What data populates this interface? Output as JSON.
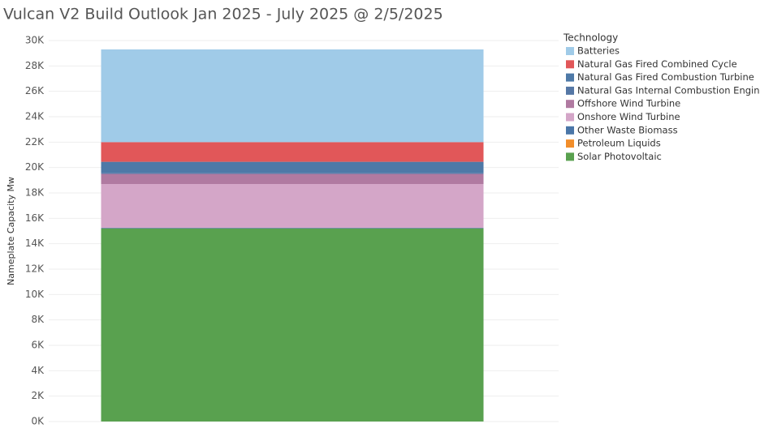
{
  "chart_data": {
    "type": "stacked_bar",
    "title": "Vulcan V2 Build Outlook Jan 2025 - July 2025 @ 2/5/2025",
    "y_label": "Nameplate Capacity Mw",
    "legend_title": "Technology",
    "categories": [
      null
    ],
    "series": [
      {
        "name": "Batteries",
        "color": "#a0cbe8",
        "values": [
          7300
        ]
      },
      {
        "name": "Natural Gas Fired Combined Cycle",
        "color": "#e15759",
        "values": [
          1550
        ]
      },
      {
        "name": "Natural Gas Fired Combustion Turbine",
        "color": "#4e79a7",
        "values": [
          900
        ]
      },
      {
        "name": "Natural Gas Internal Combustion Engine",
        "color": "#5577a5",
        "values": [
          50
        ]
      },
      {
        "name": "Offshore Wind Turbine",
        "color": "#b07aa1",
        "values": [
          800
        ]
      },
      {
        "name": "Onshore Wind Turbine",
        "color": "#d4a6c8",
        "values": [
          3440
        ]
      },
      {
        "name": "Other Waste Biomass",
        "color": "#4a76a8",
        "values": [
          50
        ]
      },
      {
        "name": "Petroleum Liquids",
        "color": "#f28e2b",
        "values": [
          10
        ]
      },
      {
        "name": "Solar Photovoltaic",
        "color": "#59a14f",
        "values": [
          15200
        ]
      }
    ],
    "ylim": [
      0,
      30000
    ],
    "yticks": [
      {
        "value": 0,
        "label": "0K"
      },
      {
        "value": 2000,
        "label": "2K"
      },
      {
        "value": 4000,
        "label": "4K"
      },
      {
        "value": 6000,
        "label": "6K"
      },
      {
        "value": 8000,
        "label": "8K"
      },
      {
        "value": 10000,
        "label": "10K"
      },
      {
        "value": 12000,
        "label": "12K"
      },
      {
        "value": 14000,
        "label": "14K"
      },
      {
        "value": 16000,
        "label": "16K"
      },
      {
        "value": 18000,
        "label": "18K"
      },
      {
        "value": 20000,
        "label": "20K"
      },
      {
        "value": 22000,
        "label": "22K"
      },
      {
        "value": 24000,
        "label": "24K"
      },
      {
        "value": 26000,
        "label": "26K"
      },
      {
        "value": 28000,
        "label": "28K"
      },
      {
        "value": 30000,
        "label": "30K"
      }
    ],
    "grid": true
  }
}
